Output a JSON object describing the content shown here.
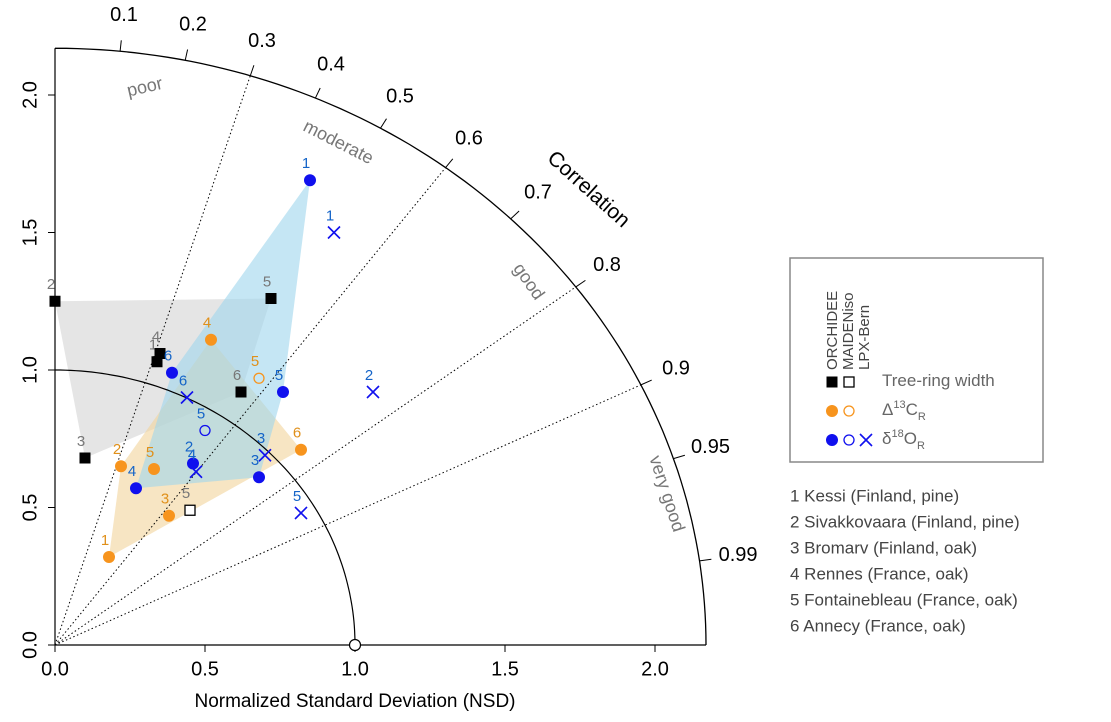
{
  "chart_data": {
    "type": "taylor",
    "xlabel": "Normalized Standard Deviation (NSD)",
    "corr_label": "Correlation",
    "xlim": [
      0,
      2.17
    ],
    "ylim": [
      0,
      2.17
    ],
    "xticks": [
      {
        "value": 0,
        "label": "0.0"
      },
      {
        "value": 0.5,
        "label": "0.5"
      },
      {
        "value": 1,
        "label": "1.0"
      },
      {
        "value": 1.5,
        "label": "1.5"
      },
      {
        "value": 2,
        "label": "2.0"
      }
    ],
    "yticks": [
      {
        "value": 0,
        "label": "0.0"
      },
      {
        "value": 0.5,
        "label": "0.5"
      },
      {
        "value": 1,
        "label": "1.0"
      },
      {
        "value": 1.5,
        "label": "1.5"
      },
      {
        "value": 2,
        "label": "2.0"
      }
    ],
    "corr_ticks": [
      0.1,
      0.2,
      0.3,
      0.4,
      0.5,
      0.6,
      0.7,
      0.8,
      0.9,
      0.95,
      0.99
    ],
    "corr_lines": [
      0.3,
      0.6,
      0.8,
      0.9
    ],
    "skill_labels": [
      "poor",
      "moderate",
      "good",
      "very good"
    ],
    "reference": {
      "x": 1,
      "y": 0
    },
    "models": [
      "ORCHIDEE",
      "MAIDENiso",
      "LPX-Bern"
    ],
    "variables": [
      {
        "label": [
          "Tree-ring width"
        ],
        "color": "#000000",
        "label_color": "#777777",
        "hull_color": "#d4d4d4"
      },
      {
        "label": [
          "Δ",
          "13",
          "C",
          "R"
        ],
        "color": "#f7941d",
        "label_color": "#e0901a",
        "hull_color": "#f2d49b"
      },
      {
        "label": [
          "δ",
          "18",
          "O",
          "R"
        ],
        "color": "#1010ee",
        "label_color": "#1464c8",
        "hull_color": "#9fd6ec"
      }
    ],
    "series": [
      {
        "variable": 0,
        "model": 0,
        "marker": "filled-square",
        "hull": true,
        "labels": [
          "1",
          "2",
          "3",
          "4",
          "5",
          "6"
        ],
        "x": [
          0.34,
          0.0,
          0.1,
          0.35,
          0.72,
          0.62
        ],
        "y": [
          1.03,
          1.25,
          0.68,
          1.06,
          1.26,
          0.92
        ]
      },
      {
        "variable": 0,
        "model": 1,
        "marker": "open-square",
        "hull": false,
        "labels": [
          "5"
        ],
        "x": [
          0.45
        ],
        "y": [
          0.49
        ]
      },
      {
        "variable": 1,
        "model": 0,
        "marker": "filled-circle",
        "hull": true,
        "labels": [
          "1",
          "2",
          "3",
          "4",
          "5",
          "6"
        ],
        "x": [
          0.18,
          0.22,
          0.38,
          0.52,
          0.33,
          0.82
        ],
        "y": [
          0.32,
          0.65,
          0.47,
          1.11,
          0.64,
          0.71
        ]
      },
      {
        "variable": 1,
        "model": 1,
        "marker": "open-circle",
        "hull": false,
        "labels": [
          "5"
        ],
        "x": [
          0.68
        ],
        "y": [
          0.97
        ]
      },
      {
        "variable": 2,
        "model": 0,
        "marker": "filled-circle",
        "hull": true,
        "labels": [
          "1",
          "2",
          "3",
          "4",
          "5",
          "6"
        ],
        "x": [
          0.85,
          0.46,
          0.68,
          0.27,
          0.76,
          0.39
        ],
        "y": [
          1.69,
          0.66,
          0.61,
          0.57,
          0.92,
          0.99
        ]
      },
      {
        "variable": 2,
        "model": 1,
        "marker": "open-circle",
        "hull": false,
        "labels": [
          "5"
        ],
        "x": [
          0.5
        ],
        "y": [
          0.78
        ]
      },
      {
        "variable": 2,
        "model": 2,
        "marker": "cross",
        "hull": false,
        "labels": [
          "1",
          "2",
          "3",
          "4",
          "5",
          "6"
        ],
        "x": [
          0.93,
          1.06,
          0.7,
          0.47,
          0.82,
          0.44
        ],
        "y": [
          1.5,
          0.92,
          0.69,
          0.63,
          0.48,
          0.9
        ]
      }
    ],
    "sites": [
      "1 Kessi (Finland, pine)",
      "2 Sivakkovaara (Finland, pine)",
      "3 Bromarv (Finland, oak)",
      "4 Rennes (France, oak)",
      "5 Fontainebleau (France, oak)",
      "6 Annecy (France, oak)"
    ]
  }
}
